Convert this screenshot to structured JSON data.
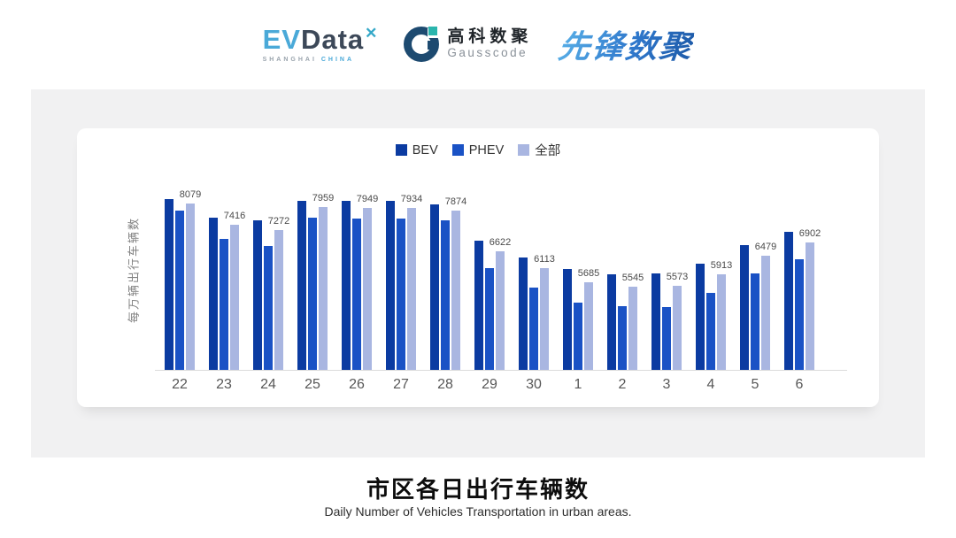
{
  "header": {
    "evdata": {
      "ev": "EV",
      "data": "Data",
      "x_mark": "✕",
      "sub_left": "SHANGHAI",
      "sub_right": "CHINA"
    },
    "gausscode": {
      "cn": "高科数聚",
      "en": "Gausscode"
    },
    "pioneer": {
      "text": "先锋数聚"
    }
  },
  "chart_data": {
    "type": "bar",
    "title": "市区各日出行车辆数",
    "subtitle": "Daily Number of Vehicles Transportation in urban areas.",
    "ylabel": "每万辆出行车辆数",
    "xlabel": "",
    "categories": [
      "22",
      "23",
      "24",
      "25",
      "26",
      "27",
      "28",
      "29",
      "30",
      "1",
      "2",
      "3",
      "4",
      "5",
      "6"
    ],
    "series": [
      {
        "key": "bev",
        "name": "BEV",
        "color": "#0b3ba1",
        "values": [
          8215,
          7655,
          7565,
          8150,
          8150,
          8165,
          8040,
          6940,
          6435,
          6080,
          5915,
          5945,
          6240,
          6795,
          7225
        ]
      },
      {
        "key": "phev",
        "name": "PHEV",
        "color": "#1a52c5",
        "values": [
          7855,
          7000,
          6775,
          7640,
          7625,
          7610,
          7565,
          6115,
          5515,
          5065,
          4940,
          4930,
          5355,
          5935,
          6380
        ]
      },
      {
        "key": "all",
        "name": "全部",
        "color": "#a9b6e1",
        "values": [
          8079,
          7416,
          7272,
          7959,
          7949,
          7934,
          7874,
          6622,
          6113,
          5685,
          5545,
          5573,
          5913,
          6479,
          6902
        ]
      }
    ],
    "value_labels": [
      8079,
      7416,
      7272,
      7959,
      7949,
      7934,
      7874,
      6622,
      6113,
      5685,
      5545,
      5573,
      5913,
      6479,
      6902
    ],
    "ylim": [
      3000,
      8400
    ],
    "legend_position": "top",
    "grid": false,
    "colors": {
      "axis_line": "#dcdcdc",
      "tick_text": "#585858",
      "value_label_text": "#4a4a4a"
    }
  }
}
